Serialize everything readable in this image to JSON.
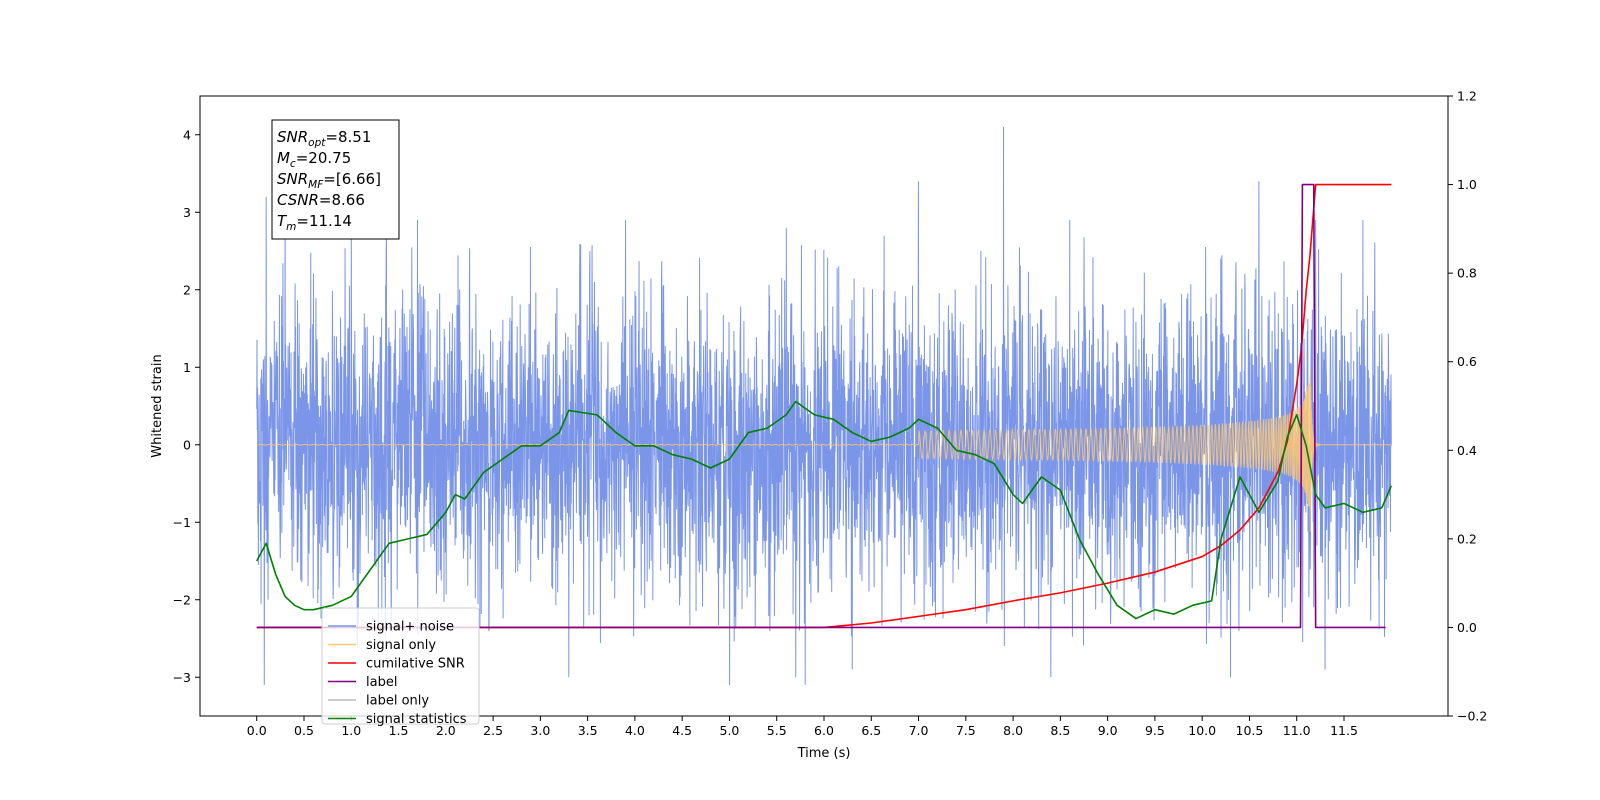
{
  "chart_data": {
    "type": "line",
    "xlabel": "Time (s)",
    "ylabel_left": "Whitened strain",
    "ylabel_right": "",
    "xlim": [
      -0.6,
      12.6
    ],
    "ylim_left": [
      -3.5,
      4.5
    ],
    "ylim_right": [
      -0.2,
      1.2
    ],
    "x_ticks": [
      "0.0",
      "0.5",
      "1.0",
      "1.5",
      "2.0",
      "2.5",
      "3.0",
      "3.5",
      "4.0",
      "4.5",
      "5.0",
      "5.5",
      "6.0",
      "6.5",
      "7.0",
      "7.5",
      "8.0",
      "8.5",
      "9.0",
      "9.5",
      "10.0",
      "10.5",
      "11.0",
      "11.5"
    ],
    "y_ticks_left": [
      "−3",
      "−2",
      "−1",
      "0",
      "1",
      "2",
      "3",
      "4"
    ],
    "y_ticks_right": [
      "−0.2",
      "0.0",
      "0.2",
      "0.4",
      "0.6",
      "0.8",
      "1.0",
      "1.2"
    ],
    "grid": false,
    "annotation": {
      "lines": [
        {
          "base": "SNR",
          "sub": "opt",
          "value": "=8.51"
        },
        {
          "base": "M",
          "sub": "c",
          "value": "=20.75"
        },
        {
          "base": "SNR",
          "sub": "MF",
          "value": "=[6.66]"
        },
        {
          "base": "CSNR",
          "sub": "",
          "value": "=8.66"
        },
        {
          "base": "T",
          "sub": "m",
          "value": "=11.14"
        }
      ]
    },
    "legend": {
      "placement": "lower-left",
      "entries": [
        {
          "label": "signal+ noise",
          "color": "#7b96e8"
        },
        {
          "label": "signal only",
          "color": "#ffc870"
        },
        {
          "label": "cumilative SNR",
          "color": "#ff0000"
        },
        {
          "label": "label",
          "color": "#800080"
        },
        {
          "label": "label only",
          "color": "#bbbbbb"
        },
        {
          "label": "signal statistics",
          "color": "#008000"
        }
      ]
    },
    "series": [
      {
        "name": "signal+ noise",
        "axis": "left",
        "color": "#7b96e8",
        "style": "noise",
        "x_range": [
          0.0,
          12.0
        ],
        "std": 0.95,
        "peaks": [
          [
            0.1,
            3.2
          ],
          [
            0.3,
            3.3
          ],
          [
            1.0,
            2.7
          ],
          [
            1.7,
            2.9
          ],
          [
            3.9,
            2.9
          ],
          [
            5.6,
            2.8
          ],
          [
            7.0,
            3.4
          ],
          [
            7.9,
            4.1
          ],
          [
            8.6,
            2.9
          ],
          [
            10.6,
            3.4
          ],
          [
            11.2,
            2.9
          ],
          [
            11.7,
            2.9
          ],
          [
            0.08,
            -3.1
          ],
          [
            3.3,
            -3.0
          ],
          [
            5.0,
            -3.1
          ],
          [
            5.7,
            -3.0
          ],
          [
            5.8,
            -3.1
          ],
          [
            6.3,
            -2.9
          ],
          [
            8.4,
            -3.0
          ],
          [
            10.3,
            -3.0
          ],
          [
            11.3,
            -2.9
          ]
        ]
      },
      {
        "name": "signal only",
        "axis": "left",
        "color": "#ffc870",
        "style": "chirp",
        "x_range": [
          0.0,
          12.0
        ],
        "merger_time": 11.14,
        "peak_amplitude": 1.6
      },
      {
        "name": "cumilative SNR",
        "axis": "right",
        "color": "#ff0000",
        "x": [
          0.0,
          6.0,
          6.5,
          7.0,
          7.5,
          8.0,
          8.5,
          9.0,
          9.5,
          10.0,
          10.2,
          10.4,
          10.6,
          10.8,
          10.9,
          11.0,
          11.05,
          11.1,
          11.14,
          11.2,
          12.0
        ],
        "y": [
          0.0,
          0.0,
          0.01,
          0.025,
          0.04,
          0.06,
          0.078,
          0.1,
          0.125,
          0.16,
          0.185,
          0.22,
          0.27,
          0.35,
          0.42,
          0.55,
          0.63,
          0.76,
          0.84,
          1.0,
          1.0
        ]
      },
      {
        "name": "label",
        "axis": "right",
        "color": "#800080",
        "x": [
          0.0,
          11.04,
          11.06,
          11.18,
          11.2,
          11.94
        ],
        "y": [
          0.0,
          0.0,
          1.0,
          1.0,
          0.0,
          0.0
        ]
      },
      {
        "name": "signal statistics",
        "axis": "right",
        "color": "#008000",
        "x": [
          0.0,
          0.1,
          0.2,
          0.3,
          0.4,
          0.5,
          0.6,
          0.8,
          1.0,
          1.2,
          1.4,
          1.6,
          1.8,
          2.0,
          2.1,
          2.2,
          2.4,
          2.6,
          2.8,
          3.0,
          3.2,
          3.3,
          3.6,
          3.8,
          4.0,
          4.2,
          4.4,
          4.6,
          4.8,
          5.0,
          5.2,
          5.4,
          5.6,
          5.7,
          5.9,
          6.1,
          6.3,
          6.5,
          6.7,
          6.9,
          7.0,
          7.2,
          7.4,
          7.6,
          7.8,
          8.0,
          8.1,
          8.3,
          8.5,
          8.7,
          8.9,
          9.1,
          9.3,
          9.5,
          9.7,
          9.9,
          10.1,
          10.2,
          10.4,
          10.6,
          10.8,
          10.9,
          11.0,
          11.1,
          11.2,
          11.3,
          11.5,
          11.7,
          11.9,
          12.0
        ],
        "y": [
          0.15,
          0.19,
          0.12,
          0.07,
          0.05,
          0.04,
          0.04,
          0.05,
          0.07,
          0.13,
          0.19,
          0.2,
          0.21,
          0.26,
          0.3,
          0.29,
          0.35,
          0.38,
          0.41,
          0.41,
          0.44,
          0.49,
          0.48,
          0.44,
          0.41,
          0.41,
          0.39,
          0.38,
          0.36,
          0.38,
          0.44,
          0.45,
          0.48,
          0.51,
          0.48,
          0.47,
          0.44,
          0.42,
          0.43,
          0.45,
          0.47,
          0.45,
          0.4,
          0.39,
          0.37,
          0.3,
          0.28,
          0.34,
          0.31,
          0.2,
          0.12,
          0.05,
          0.02,
          0.04,
          0.03,
          0.05,
          0.06,
          0.2,
          0.34,
          0.26,
          0.33,
          0.43,
          0.48,
          0.41,
          0.3,
          0.27,
          0.28,
          0.26,
          0.27,
          0.32
        ]
      }
    ]
  }
}
